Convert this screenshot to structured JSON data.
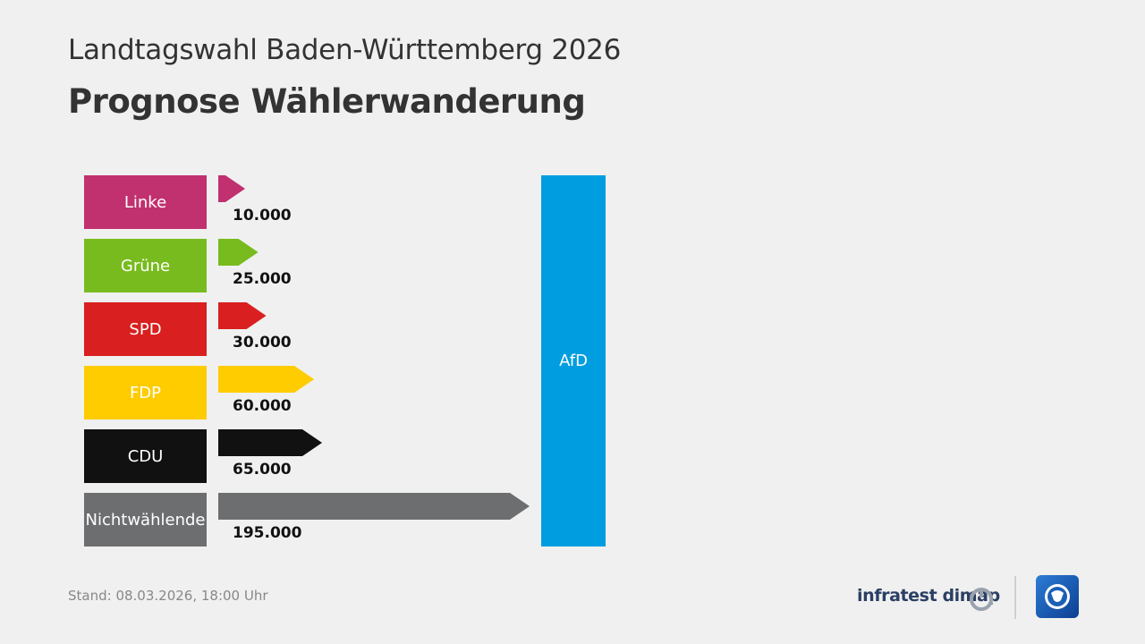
{
  "header": {
    "supertitle": "Landtagswahl Baden-Württemberg 2026",
    "title": "Prognose Wählerwanderung"
  },
  "chart_data": {
    "type": "bar",
    "orientation": "horizontal",
    "target": {
      "label": "AfD",
      "color": "#009de0"
    },
    "categories": [
      "Linke",
      "Grüne",
      "SPD",
      "FDP",
      "CDU",
      "Nichtwählende"
    ],
    "values": [
      10000,
      25000,
      30000,
      60000,
      65000,
      195000
    ],
    "value_labels": [
      "10.000",
      "25.000",
      "30.000",
      "60.000",
      "65.000",
      "195.000"
    ],
    "colors": [
      "#c1306f",
      "#78bb1e",
      "#d91f1f",
      "#ffcc00",
      "#111111",
      "#6d6e70"
    ]
  },
  "footer": {
    "stand": "Stand:  08.03.2026, 18:00 Uhr",
    "brand": "infratest dimap"
  }
}
